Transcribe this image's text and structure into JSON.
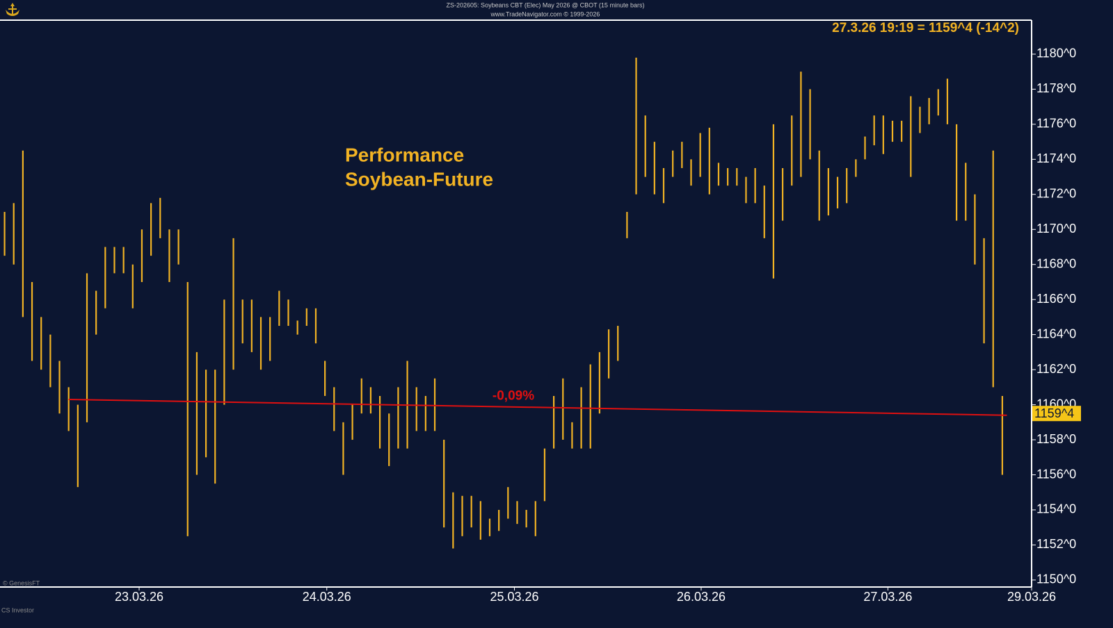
{
  "chart_data": {
    "type": "ohlc",
    "header": "ZS-202605:  Soybeans CBT (Elec) May 2026 @ CBOT  (15 minute bars)",
    "subheader": "www.TradeNavigator.com © 1999-2026",
    "readout": "27.3.26 19:19 = 1159^4 (-14^2)",
    "title": [
      "Performance",
      "Soybean-Future"
    ],
    "footer": [
      "© GenesisFT",
      "CS Investor"
    ],
    "color": "#f2b324",
    "high": [
      1171,
      1171.5,
      1174.5,
      1167,
      1165,
      1164,
      1162.5,
      1161,
      1160,
      1167.5,
      1166.5,
      1169,
      1169,
      1169,
      1168,
      1170,
      1171.5,
      1171.8,
      1170,
      1170,
      1167,
      1163,
      1162,
      1162,
      1166,
      1169.5,
      1166,
      1166,
      1165,
      1165,
      1166.5,
      1166,
      1164.8,
      1165.5,
      1165.5,
      1162.5,
      1161,
      1159,
      1160,
      1161.5,
      1161,
      1160.5,
      1159.5,
      1161,
      1162.5,
      1161,
      1160.5,
      1161.5,
      1158,
      1155,
      1154.8,
      1154.8,
      1154.5,
      1153.5,
      1154,
      1155.3,
      1154.5,
      1154,
      1154.5,
      1157.5,
      1160.5,
      1161.5,
      1159,
      1161,
      1162.3,
      1163,
      1164.3,
      1164.5,
      1171,
      1179.8,
      1176.5,
      1175,
      1173.5,
      1174.5,
      1175,
      1174,
      1175.5,
      1175.8,
      1173.8,
      1173.5,
      1173.5,
      1173,
      1173.5,
      1172.5,
      1176,
      1173.5,
      1176.5,
      1179,
      1178,
      1174.5,
      1173.5,
      1173,
      1173.5,
      1174,
      1175.3,
      1176.5,
      1176.5,
      1176.2,
      1176.2,
      1177.6,
      1177,
      1177.5,
      1178,
      1178.6,
      1176,
      1173.8,
      1172,
      1169.5,
      1174.5,
      1160.5
    ],
    "low": [
      1168.5,
      1168,
      1165,
      1162.5,
      1162,
      1161,
      1159.5,
      1158.5,
      1155.3,
      1159,
      1164,
      1165.5,
      1167.5,
      1167.5,
      1165.5,
      1167,
      1168.5,
      1169.5,
      1167,
      1168,
      1152.5,
      1156,
      1157,
      1155.5,
      1160,
      1162,
      1163.5,
      1163,
      1162,
      1162.5,
      1164.5,
      1164.5,
      1164,
      1164.5,
      1163.5,
      1160.5,
      1158.5,
      1156,
      1158,
      1159.5,
      1159.5,
      1157.5,
      1156.5,
      1157.5,
      1157.5,
      1158.5,
      1158.5,
      1158.5,
      1153,
      1151.8,
      1152.5,
      1153,
      1152.3,
      1152.5,
      1152.8,
      1153.5,
      1153.2,
      1153,
      1152.5,
      1154.5,
      1157.5,
      1158,
      1157.5,
      1157.5,
      1157.5,
      1159.5,
      1161.5,
      1162.5,
      1169.5,
      1172,
      1173,
      1172,
      1171.5,
      1173,
      1173.5,
      1172.5,
      1173,
      1172,
      1172.5,
      1172.5,
      1172.5,
      1171.5,
      1171.5,
      1169.5,
      1167.2,
      1170.5,
      1172.5,
      1173,
      1174,
      1170.5,
      1170.8,
      1171.2,
      1171.5,
      1173,
      1174,
      1174.8,
      1174.3,
      1175,
      1175,
      1173,
      1175.5,
      1176,
      1176.5,
      1176,
      1170.5,
      1170.5,
      1168,
      1163.5,
      1161,
      1156
    ],
    "xlim": [
      0,
      112.7
    ],
    "xticks": [
      {
        "value": 15.2,
        "label": "23.03.26"
      },
      {
        "value": 35.7,
        "label": "24.03.26"
      },
      {
        "value": 56.2,
        "label": "25.03.26"
      },
      {
        "value": 76.6,
        "label": "26.03.26"
      },
      {
        "value": 97.0,
        "label": "27.03.26"
      },
      {
        "value": 112.7,
        "label": "29.03.26"
      }
    ],
    "ylim": [
      1149.6,
      1181.9
    ],
    "yticks": [
      {
        "value": 1150,
        "label": "1150^0"
      },
      {
        "value": 1152,
        "label": "1152^0"
      },
      {
        "value": 1154,
        "label": "1154^0"
      },
      {
        "value": 1156,
        "label": "1156^0"
      },
      {
        "value": 1158,
        "label": "1158^0"
      },
      {
        "value": 1160,
        "label": "1160^0"
      },
      {
        "value": 1162,
        "label": "1162^0"
      },
      {
        "value": 1164,
        "label": "1164^0"
      },
      {
        "value": 1166,
        "label": "1166^0"
      },
      {
        "value": 1168,
        "label": "1168^0"
      },
      {
        "value": 1170,
        "label": "1170^0"
      },
      {
        "value": 1172,
        "label": "1172^0"
      },
      {
        "value": 1174,
        "label": "1174^0"
      },
      {
        "value": 1176,
        "label": "1176^0"
      },
      {
        "value": 1178,
        "label": "1178^0"
      },
      {
        "value": 1180,
        "label": "1180^0"
      }
    ],
    "reference_line": {
      "start_x": 7.5,
      "end_x": 110,
      "start": 1160.3,
      "end": 1159.4,
      "label": "-0,09%",
      "color": "#e01010"
    },
    "current_price": {
      "value": 1159.5,
      "label": "1159^4"
    }
  }
}
